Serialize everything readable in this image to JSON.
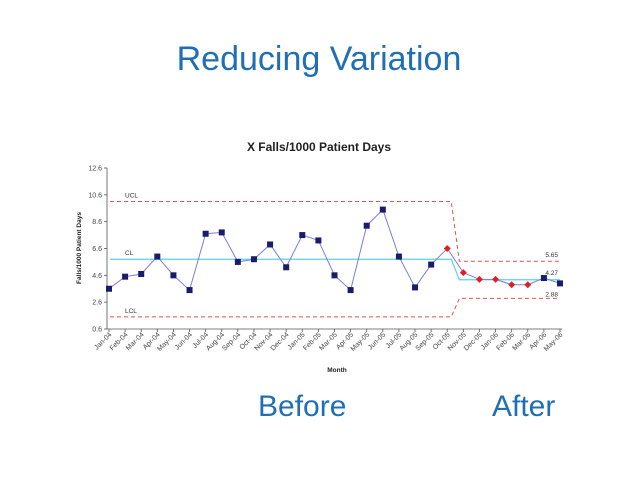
{
  "slide": {
    "title": "Reducing Variation",
    "caption_before": "Before",
    "caption_after": "After"
  },
  "chart_data": {
    "type": "line",
    "title": "X Falls/1000 Patient Days",
    "xlabel": "Month",
    "ylabel": "Falls/1000 Patient Days",
    "ylim": [
      0.6,
      12.6
    ],
    "y_ticks": [
      "0.6",
      "2.6",
      "4.6",
      "6.6",
      "8.6",
      "10.6",
      "12.6"
    ],
    "grid": false,
    "categories": [
      "Jan-04",
      "Feb-04",
      "Mar-04",
      "Apr-04",
      "May-04",
      "Jun-04",
      "Jul-04",
      "Aug-04",
      "Sep-04",
      "Oct-04",
      "Nov-04",
      "Dec-04",
      "Jan-05",
      "Feb-05",
      "Mar-05",
      "Apr-05",
      "May-05",
      "Jun-05",
      "Jul-05",
      "Aug-05",
      "Sep-05",
      "Oct-05",
      "Nov-05",
      "Dec-05",
      "Jan-06",
      "Feb-06",
      "Mar-06",
      "Apr-06",
      "May-06"
    ],
    "series": [
      {
        "values": [
          3.6,
          4.5,
          4.7,
          6.0,
          4.6,
          3.5,
          7.7,
          7.8,
          5.6,
          5.8,
          6.9,
          5.2,
          7.6,
          7.2,
          4.6,
          3.5,
          8.3,
          9.5,
          6.0,
          3.7,
          5.4,
          6.6,
          4.8,
          4.3,
          4.3,
          3.9,
          3.9,
          4.4,
          4.0
        ],
        "marker_colors": [
          "#1a1a6e",
          "#1a1a6e",
          "#1a1a6e",
          "#1a1a6e",
          "#1a1a6e",
          "#1a1a6e",
          "#1a1a6e",
          "#1a1a6e",
          "#1a1a6e",
          "#1a1a6e",
          "#1a1a6e",
          "#1a1a6e",
          "#1a1a6e",
          "#1a1a6e",
          "#1a1a6e",
          "#1a1a6e",
          "#1a1a6e",
          "#1a1a6e",
          "#1a1a6e",
          "#1a1a6e",
          "#1a1a6e",
          "#e02020",
          "#e02020",
          "#e02020",
          "#e02020",
          "#e02020",
          "#e02020",
          "#1a1a6e",
          "#1a1a6e"
        ],
        "line_color": "#7b7fd4"
      }
    ],
    "limits": {
      "before": {
        "ucl": 10.1,
        "cl": 5.8,
        "lcl": 1.5,
        "labels": {
          "ucl": "UCL",
          "cl": "CL",
          "lcl": "LCL"
        }
      },
      "after": {
        "ucl": 5.65,
        "cl": 4.27,
        "lcl": 2.88,
        "labels": {
          "ucl": "5.65",
          "cl": "4.27",
          "lcl": "2.88"
        }
      }
    },
    "colors": {
      "limit_lines": "#e05050",
      "center_line": "#5ad3ee",
      "axis": "#555555"
    }
  }
}
